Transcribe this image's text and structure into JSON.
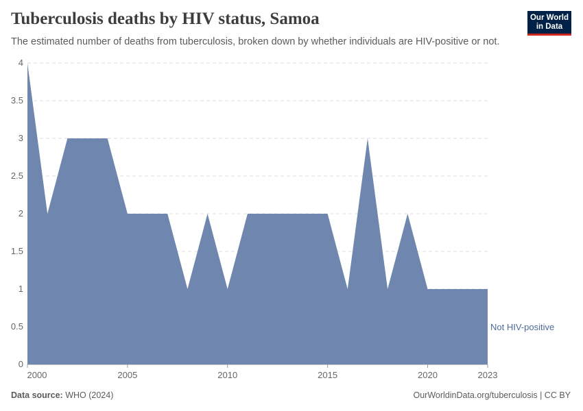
{
  "header": {
    "title": "Tuberculosis deaths by HIV status, Samoa",
    "subtitle": "The estimated number of deaths from tuberculosis, broken down by whether individuals are HIV-positive or not."
  },
  "logo": {
    "line1": "Our World",
    "line2": "in Data",
    "bg_color": "#002147",
    "accent_color": "#ce261e"
  },
  "footer": {
    "source_label": "Data source:",
    "source_value": "WHO (2024)",
    "url": "OurWorldinData.org/tuberculosis | CC BY"
  },
  "chart_data": {
    "type": "area",
    "x": [
      2000,
      2001,
      2002,
      2003,
      2004,
      2005,
      2006,
      2007,
      2008,
      2009,
      2010,
      2011,
      2012,
      2013,
      2014,
      2015,
      2016,
      2017,
      2018,
      2019,
      2020,
      2021,
      2022,
      2023
    ],
    "series": [
      {
        "name": "Not HIV-positive",
        "color": "#6f87ae",
        "label_color": "#4c6a9c",
        "values": [
          4,
          2,
          3,
          3,
          3,
          2,
          2,
          2,
          1,
          2,
          1,
          2,
          2,
          2,
          2,
          2,
          1,
          3,
          1,
          2,
          1,
          1,
          1,
          1
        ]
      }
    ],
    "xlim": [
      2000,
      2023
    ],
    "ylim": [
      0,
      4
    ],
    "x_ticks": [
      "2000",
      "2005",
      "2010",
      "2015",
      "2020",
      "2023"
    ],
    "y_ticks": [
      "0",
      "0.5",
      "1",
      "1.5",
      "2",
      "2.5",
      "3",
      "3.5",
      "4"
    ],
    "grid": "horizontal-dashed"
  }
}
